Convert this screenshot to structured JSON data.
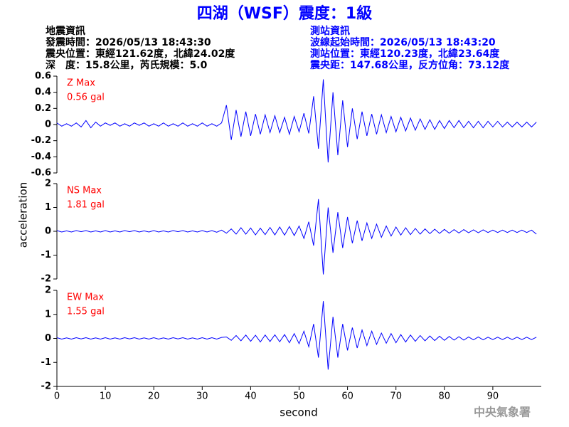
{
  "chart_data": {
    "type": "line",
    "title": "四湖（WSF）震度：1級",
    "event_info": [
      "地震資訊",
      "發震時間：2026/05/13 18:43:30",
      "震央位置：東經121.62度，北緯24.02度",
      "深　度：15.8公里，芮氏規模：5.0"
    ],
    "station_info": [
      "測站資訊",
      "波線起始時間：2026/05/13 18:43:20",
      "測站位置：東經120.23度，北緯23.64度",
      "震央距：147.68公里，反方位角：73.12度"
    ],
    "source": "中央氣象署",
    "xlabel": "second",
    "ylabel": "acceleration",
    "xlim": [
      0,
      100
    ],
    "xticks": [
      0,
      10,
      20,
      30,
      40,
      50,
      60,
      70,
      80,
      90
    ],
    "x": [
      0,
      1,
      2,
      3,
      4,
      5,
      6,
      7,
      8,
      9,
      10,
      11,
      12,
      13,
      14,
      15,
      16,
      17,
      18,
      19,
      20,
      21,
      22,
      23,
      24,
      25,
      26,
      27,
      28,
      29,
      30,
      31,
      32,
      33,
      34,
      35,
      36,
      37,
      38,
      39,
      40,
      41,
      42,
      43,
      44,
      45,
      46,
      47,
      48,
      49,
      50,
      51,
      52,
      53,
      54,
      55,
      56,
      57,
      58,
      59,
      60,
      61,
      62,
      63,
      64,
      65,
      66,
      67,
      68,
      69,
      70,
      71,
      72,
      73,
      74,
      75,
      76,
      77,
      78,
      79,
      80,
      81,
      82,
      83,
      84,
      85,
      86,
      87,
      88,
      89,
      90,
      91,
      92,
      93,
      94,
      95,
      96,
      97,
      98,
      99
    ],
    "panels": [
      {
        "name": "Z Max",
        "max_label": "0.56 gal",
        "color": "#0000ff",
        "label_color": "#ff0000",
        "ylim": [
          -0.6,
          0.6
        ],
        "yticks": [
          -0.6,
          -0.4,
          -0.2,
          0,
          0.2,
          0.4,
          0.6
        ],
        "values": [
          0.02,
          -0.02,
          0.01,
          -0.02,
          0.02,
          -0.03,
          0.05,
          -0.04,
          0.03,
          -0.02,
          0.02,
          -0.01,
          0.02,
          -0.02,
          0.01,
          -0.02,
          0.02,
          -0.01,
          0.02,
          -0.02,
          0.01,
          -0.02,
          0.02,
          -0.02,
          0.01,
          -0.02,
          0.02,
          -0.02,
          0.01,
          -0.02,
          0.02,
          -0.02,
          0.01,
          -0.02,
          0.02,
          0.24,
          -0.19,
          0.18,
          -0.15,
          0.16,
          -0.14,
          0.13,
          -0.12,
          0.12,
          -0.1,
          0.11,
          -0.1,
          0.09,
          -0.12,
          0.1,
          -0.09,
          0.14,
          -0.11,
          0.35,
          -0.3,
          0.56,
          -0.47,
          0.4,
          -0.38,
          0.3,
          -0.28,
          0.2,
          -0.18,
          0.16,
          -0.14,
          0.13,
          -0.12,
          0.12,
          -0.1,
          0.1,
          -0.09,
          0.09,
          -0.08,
          0.08,
          -0.07,
          0.07,
          -0.06,
          0.06,
          -0.06,
          0.05,
          -0.05,
          0.05,
          -0.04,
          0.05,
          -0.04,
          0.04,
          -0.04,
          0.04,
          -0.04,
          0.04,
          -0.03,
          0.04,
          -0.03,
          0.03,
          -0.03,
          0.03,
          -0.03,
          0.03,
          -0.03,
          0.03
        ]
      },
      {
        "name": "NS Max",
        "max_label": "1.81 gal",
        "color": "#0000ff",
        "label_color": "#ff0000",
        "ylim": [
          -2,
          2
        ],
        "yticks": [
          -2,
          -1,
          0,
          1,
          2
        ],
        "values": [
          0.03,
          -0.03,
          0.02,
          -0.03,
          0.03,
          -0.02,
          0.03,
          -0.03,
          0.02,
          -0.03,
          0.03,
          -0.03,
          0.02,
          -0.03,
          0.03,
          -0.02,
          0.03,
          -0.03,
          0.02,
          -0.03,
          0.03,
          -0.03,
          0.02,
          -0.03,
          0.03,
          -0.02,
          0.03,
          -0.03,
          0.02,
          -0.03,
          0.03,
          -0.03,
          0.03,
          -0.04,
          0.05,
          -0.08,
          0.1,
          -0.12,
          0.15,
          -0.12,
          0.14,
          -0.15,
          0.13,
          -0.14,
          0.16,
          -0.15,
          0.18,
          -0.16,
          0.2,
          -0.18,
          0.22,
          -0.3,
          0.4,
          -0.6,
          1.35,
          -1.81,
          1.0,
          -0.9,
          0.8,
          -0.7,
          0.6,
          -0.5,
          0.45,
          -0.4,
          0.35,
          -0.3,
          0.3,
          -0.25,
          0.22,
          -0.2,
          0.18,
          -0.16,
          0.15,
          -0.14,
          0.12,
          -0.12,
          0.1,
          -0.1,
          0.09,
          -0.09,
          0.08,
          -0.08,
          0.07,
          -0.07,
          0.07,
          -0.06,
          0.06,
          -0.06,
          0.06,
          -0.05,
          0.05,
          -0.05,
          0.05,
          -0.05,
          0.05,
          -0.05,
          0.05,
          -0.05,
          0.05,
          -0.12
        ]
      },
      {
        "name": "EW Max",
        "max_label": "1.55 gal",
        "color": "#0000ff",
        "label_color": "#ff0000",
        "ylim": [
          -2,
          2
        ],
        "yticks": [
          -2,
          -1,
          0,
          1,
          2
        ],
        "values": [
          0.03,
          -0.03,
          0.02,
          -0.03,
          0.03,
          -0.02,
          0.03,
          -0.03,
          0.02,
          -0.03,
          0.03,
          -0.03,
          0.02,
          -0.03,
          0.03,
          -0.02,
          0.03,
          -0.03,
          0.02,
          -0.03,
          0.03,
          -0.03,
          0.02,
          -0.03,
          0.03,
          -0.02,
          0.03,
          -0.03,
          0.02,
          -0.03,
          0.03,
          -0.03,
          0.03,
          -0.03,
          0.04,
          0.06,
          -0.08,
          0.12,
          -0.1,
          0.14,
          -0.12,
          0.13,
          -0.15,
          0.14,
          -0.13,
          0.15,
          -0.14,
          0.16,
          -0.18,
          0.2,
          -0.22,
          0.3,
          -0.35,
          0.6,
          -0.8,
          1.55,
          -1.3,
          0.9,
          -0.8,
          0.6,
          -0.5,
          0.45,
          -0.4,
          0.35,
          -0.3,
          0.3,
          -0.25,
          0.22,
          -0.2,
          0.2,
          -0.18,
          0.16,
          -0.15,
          0.14,
          -0.12,
          0.12,
          -0.1,
          0.1,
          -0.09,
          0.09,
          -0.08,
          0.08,
          -0.07,
          0.07,
          -0.07,
          0.06,
          -0.06,
          0.06,
          -0.06,
          0.05,
          -0.05,
          0.05,
          -0.05,
          0.05,
          -0.05,
          0.05,
          -0.05,
          0.05,
          -0.05,
          0.05
        ]
      }
    ]
  }
}
